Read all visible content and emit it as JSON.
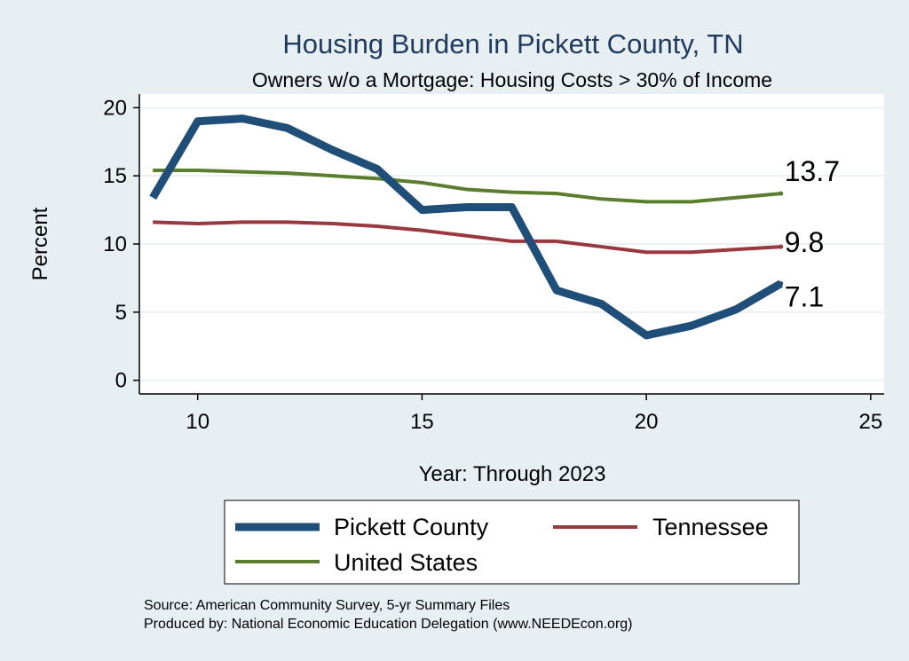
{
  "chart_data": {
    "type": "line",
    "title": "Housing Burden in Pickett County, TN",
    "subtitle": "Owners w/o a Mortgage: Housing Costs > 30% of Income",
    "xlabel": "Year: Through 2023",
    "ylabel": "Percent",
    "xlim": [
      8.7,
      25.3
    ],
    "ylim": [
      -1.0,
      21.0
    ],
    "xticks": [
      10,
      15,
      20,
      25
    ],
    "yticks": [
      0,
      5,
      10,
      15,
      20
    ],
    "grid": true,
    "x": [
      9,
      10,
      11,
      12,
      13,
      14,
      15,
      16,
      17,
      18,
      19,
      20,
      21,
      22,
      23
    ],
    "series": [
      {
        "name": "Pickett County",
        "color": "#1f4e79",
        "width": 9,
        "values": [
          13.4,
          19.0,
          19.2,
          18.5,
          16.9,
          15.5,
          12.5,
          12.7,
          12.7,
          6.6,
          5.6,
          3.3,
          4.0,
          5.2,
          7.1
        ],
        "end_label": "7.1"
      },
      {
        "name": "Tennessee",
        "color": "#98383f",
        "width": 4,
        "values": [
          11.6,
          11.5,
          11.6,
          11.6,
          11.5,
          11.3,
          11.0,
          10.6,
          10.2,
          10.2,
          9.8,
          9.4,
          9.4,
          9.6,
          9.8
        ],
        "end_label": "9.8"
      },
      {
        "name": "United States",
        "color": "#5b7d2e",
        "width": 4,
        "values": [
          15.4,
          15.4,
          15.3,
          15.2,
          15.0,
          14.8,
          14.5,
          14.0,
          13.8,
          13.7,
          13.3,
          13.1,
          13.1,
          13.4,
          13.7
        ],
        "end_label": "13.7"
      }
    ],
    "legend": {
      "position": "bottom",
      "items": [
        "Pickett County",
        "Tennessee",
        "United States"
      ]
    }
  },
  "notes": {
    "source": "Source: American Community Survey, 5-yr Summary Files",
    "produced": "Produced by: National Economic Education Delegation (www.NEEDEcon.org)"
  }
}
